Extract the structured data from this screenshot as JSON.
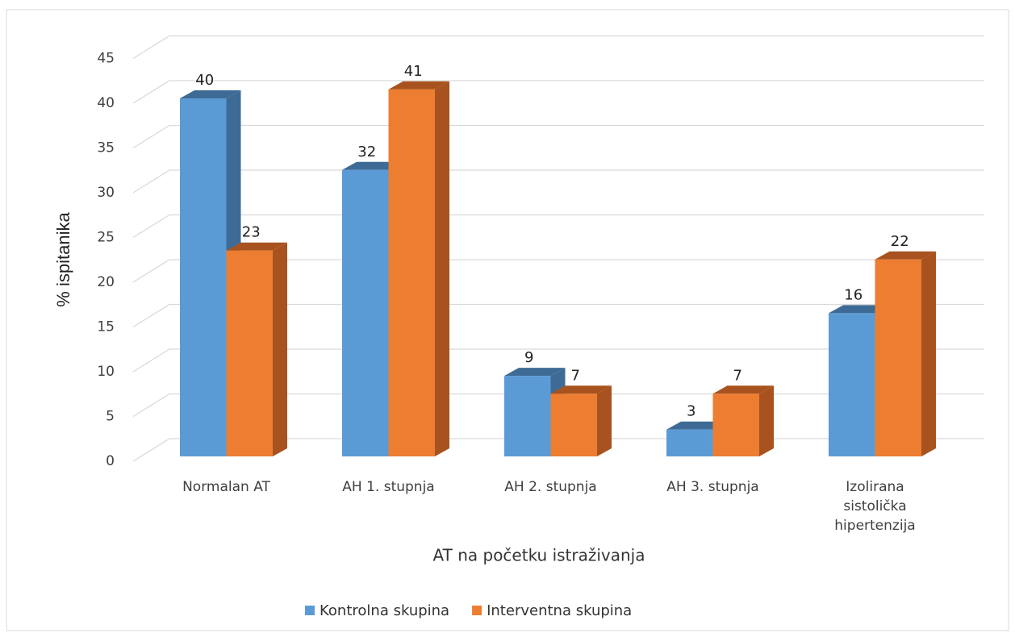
{
  "chart_data": {
    "type": "bar3d",
    "x_label": "AT na početku istraživanja",
    "y_label": "% ispitanika",
    "categories": [
      "Normalan AT",
      "AH 1. stupnja",
      "AH 2. stupnja",
      "AH 3. stupnja",
      "Izolirana sistolička hipertenzija"
    ],
    "series": [
      {
        "name": "Kontrolna skupina",
        "color": "#5b9bd5",
        "side": "#3e6b95",
        "values": [
          40,
          32,
          9,
          3,
          16
        ]
      },
      {
        "name": "Interventna skupina",
        "color": "#ed7d31",
        "side": "#a8531f",
        "values": [
          23,
          41,
          7,
          7,
          22
        ]
      }
    ],
    "ylim": [
      0,
      45
    ],
    "yticks": [
      0,
      5,
      10,
      15,
      20,
      25,
      30,
      35,
      40,
      45
    ],
    "grid": true,
    "legend": "bottom"
  }
}
